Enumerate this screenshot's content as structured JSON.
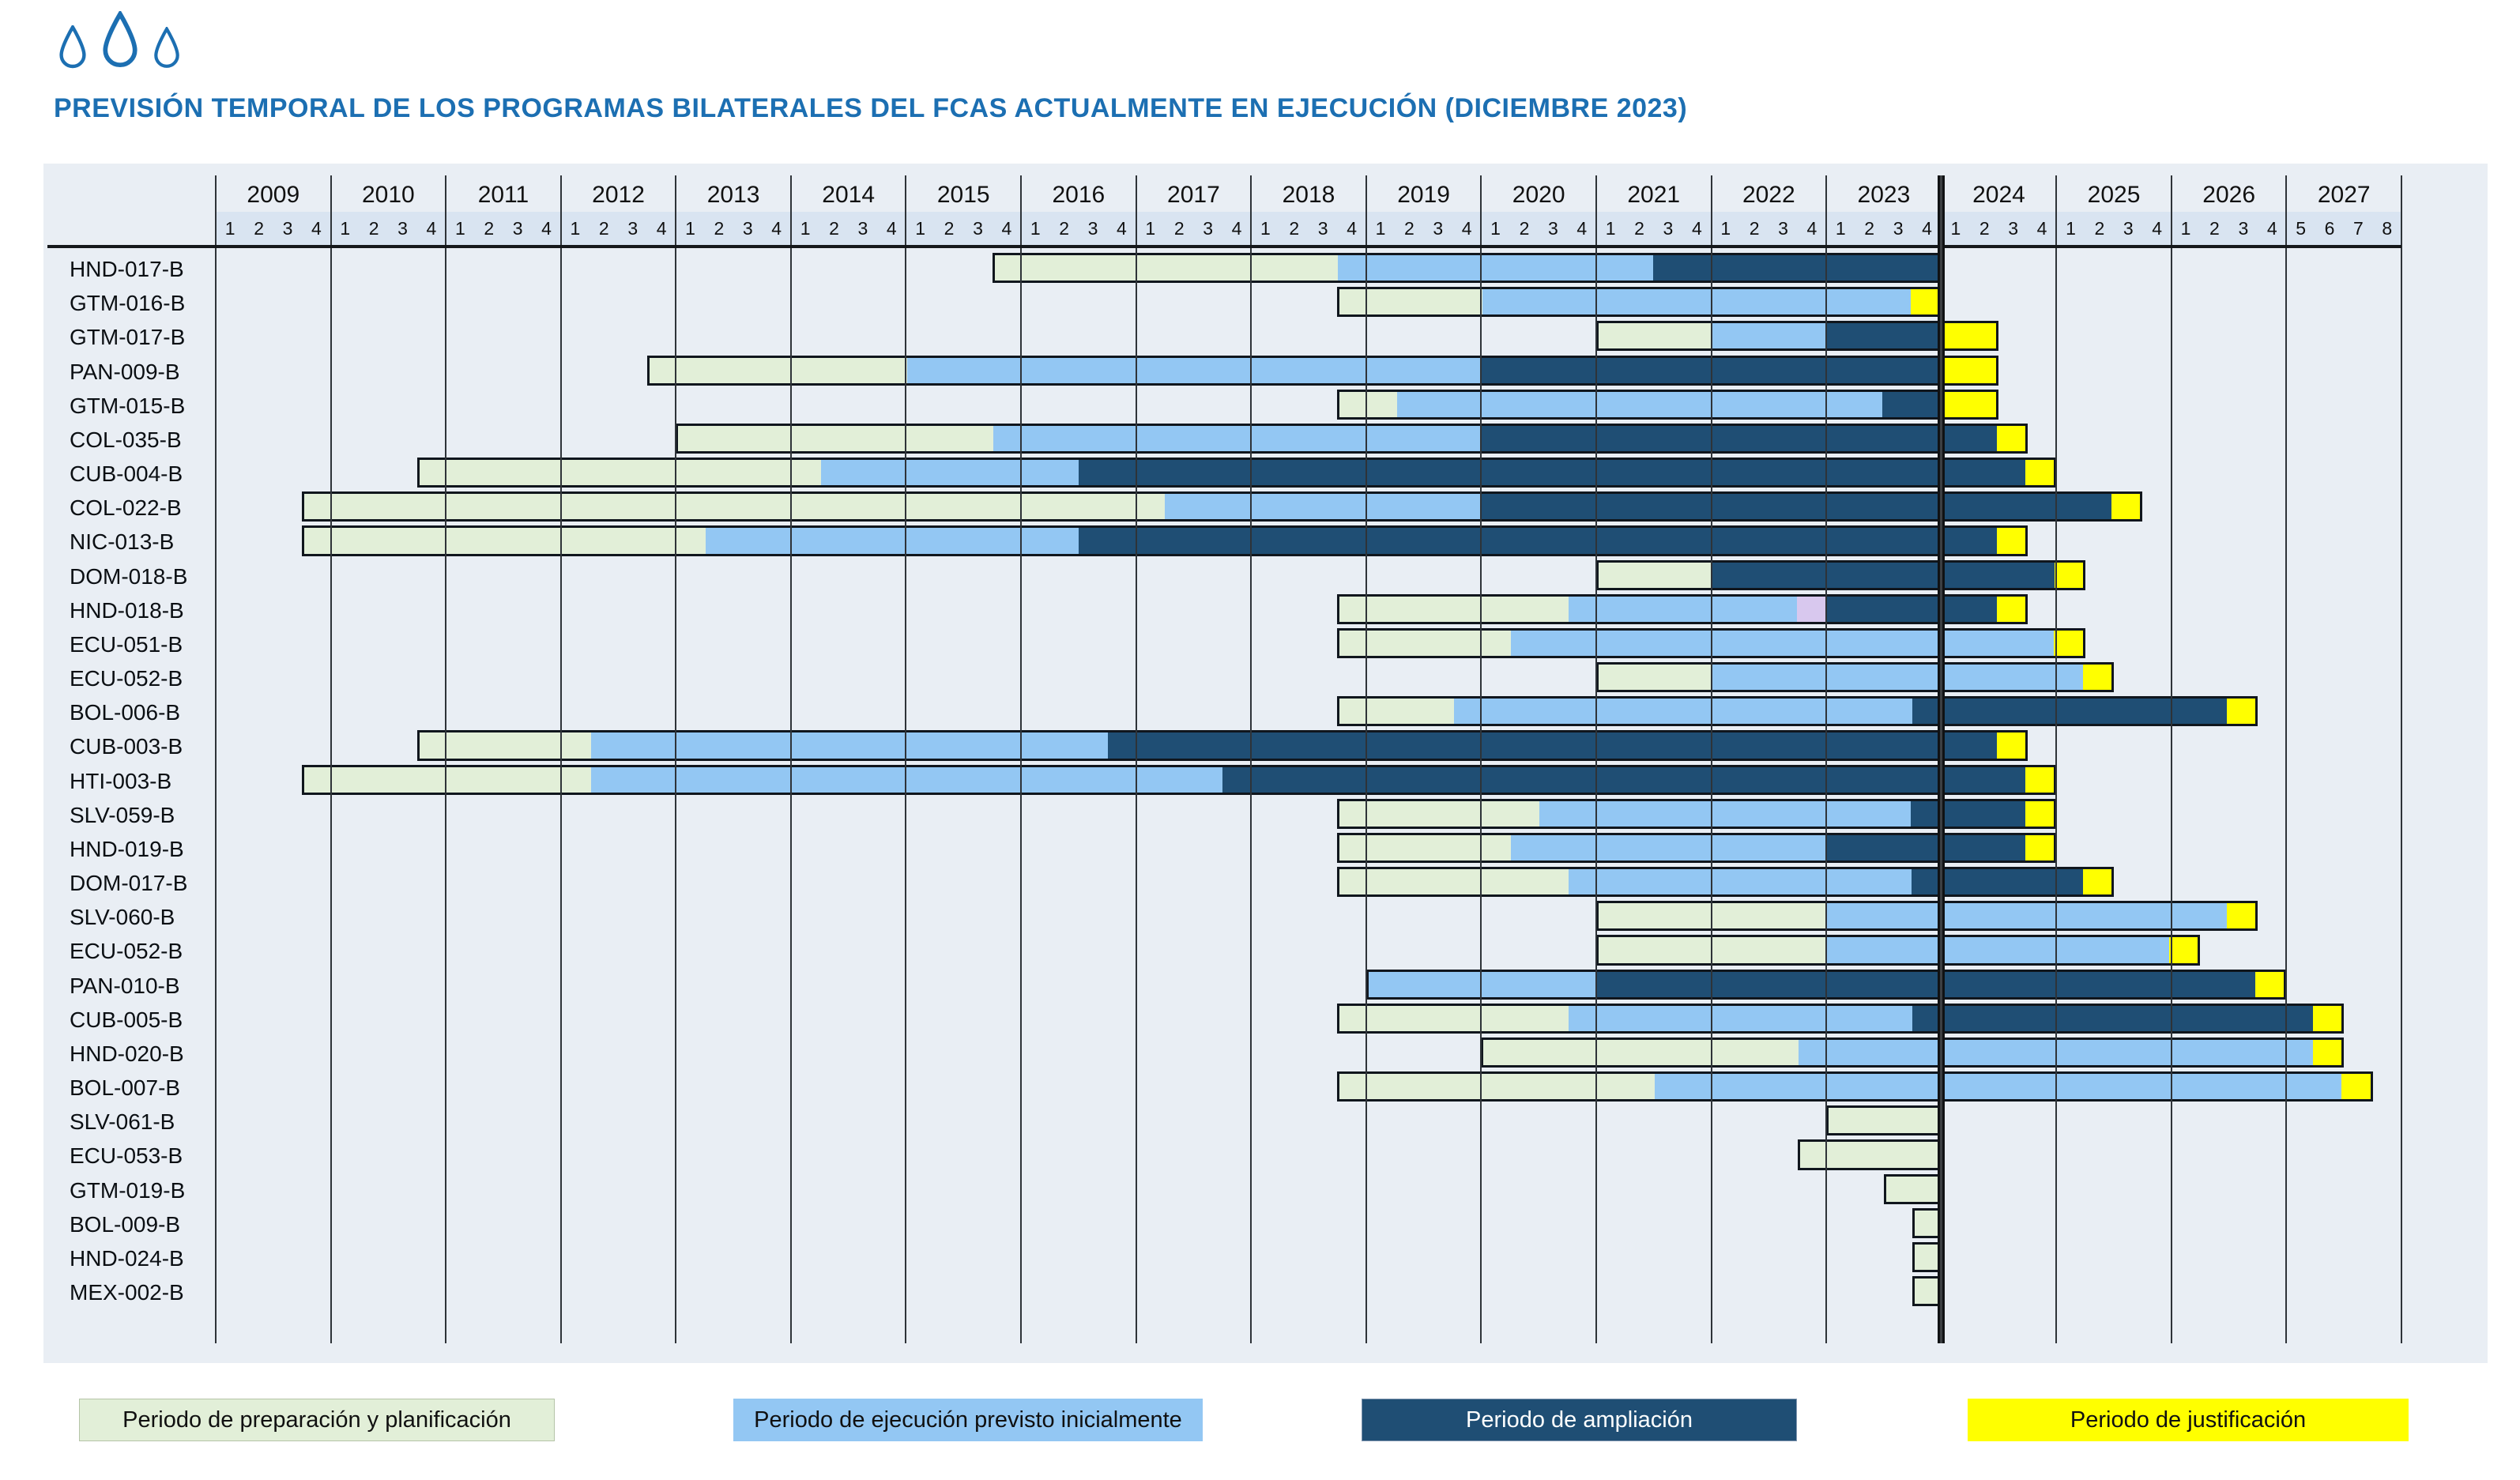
{
  "title": "PREVISIÓN TEMPORAL DE LOS PROGRAMAS BILATERALES DEL FCAS ACTUALMENTE EN EJECUCIÓN (DICIEMBRE 2023)",
  "brand": {
    "logo": "three-water-drops-icon",
    "accent_blue": "#1c6fb2"
  },
  "colors": {
    "panel_bg": "#e9eef4",
    "quarter_band_bg": "#d9e4f1",
    "grid_line": "#2e3338",
    "bar_border": "#10161d",
    "preparacion": "#e2efd8",
    "ejecucion": "#93c7f3",
    "ampliacion": "#1f4e74",
    "justificacion": "#ffff00",
    "suspension": "#d8c8ee"
  },
  "legend": [
    {
      "label": "Periodo de preparación y planificación",
      "color": "#e2efd8",
      "text": "#101010",
      "border": "#b5c4a8"
    },
    {
      "label": "Periodo de ejecución previsto inicialmente",
      "color": "#93c7f3",
      "text": "#101010",
      "border": "#93c7f3"
    },
    {
      "label": "Periodo de ampliación",
      "color": "#1f4e74",
      "text": "#ffffff",
      "border": "#7d93ad"
    },
    {
      "label": "Periodo de justificación",
      "color": "#ffff00",
      "text": "#101010",
      "border": "#ffff00"
    }
  ],
  "chart_data": {
    "type": "gantt",
    "title": "PREVISIÓN TEMPORAL DE LOS PROGRAMAS BILATERALES DEL FCAS ACTUALMENTE EN EJECUCIÓN (DICIEMBRE 2023)",
    "time_axis": {
      "quarter_index_base": "2009-Q1",
      "years": [
        {
          "year": "2009",
          "quarters": [
            "1",
            "2",
            "3",
            "4"
          ]
        },
        {
          "year": "2010",
          "quarters": [
            "1",
            "2",
            "3",
            "4"
          ]
        },
        {
          "year": "2011",
          "quarters": [
            "1",
            "2",
            "3",
            "4"
          ]
        },
        {
          "year": "2012",
          "quarters": [
            "1",
            "2",
            "3",
            "4"
          ]
        },
        {
          "year": "2013",
          "quarters": [
            "1",
            "2",
            "3",
            "4"
          ]
        },
        {
          "year": "2014",
          "quarters": [
            "1",
            "2",
            "3",
            "4"
          ]
        },
        {
          "year": "2015",
          "quarters": [
            "1",
            "2",
            "3",
            "4"
          ]
        },
        {
          "year": "2016",
          "quarters": [
            "1",
            "2",
            "3",
            "4"
          ]
        },
        {
          "year": "2017",
          "quarters": [
            "1",
            "2",
            "3",
            "4"
          ]
        },
        {
          "year": "2018",
          "quarters": [
            "1",
            "2",
            "3",
            "4"
          ]
        },
        {
          "year": "2019",
          "quarters": [
            "1",
            "2",
            "3",
            "4"
          ]
        },
        {
          "year": "2020",
          "quarters": [
            "1",
            "2",
            "3",
            "4"
          ]
        },
        {
          "year": "2021",
          "quarters": [
            "1",
            "2",
            "3",
            "4"
          ]
        },
        {
          "year": "2022",
          "quarters": [
            "1",
            "2",
            "3",
            "4"
          ]
        },
        {
          "year": "2023",
          "quarters": [
            "1",
            "2",
            "3",
            "4"
          ]
        },
        {
          "year": "2024",
          "quarters": [
            "1",
            "2",
            "3",
            "4"
          ]
        },
        {
          "year": "2025",
          "quarters": [
            "1",
            "2",
            "3",
            "4"
          ]
        },
        {
          "year": "2026",
          "quarters": [
            "1",
            "2",
            "3",
            "4"
          ]
        },
        {
          "year": "2027",
          "quarters": [
            "5",
            "6",
            "7",
            "8"
          ]
        }
      ],
      "today_marker_quarter": 60
    },
    "phases_legend": {
      "preparacion": "Periodo de preparación y planificación",
      "ejecucion": "Periodo de ejecución previsto inicialmente",
      "ampliacion": "Periodo de ampliación",
      "justificacion": "Periodo de justificación",
      "suspension": "(segmento morado sin rótulo en leyenda)"
    },
    "programs": [
      {
        "id": "HND-017-B",
        "segments": [
          {
            "phase": "preparacion",
            "from": 27,
            "to": 39
          },
          {
            "phase": "ejecucion",
            "from": 39,
            "to": 50
          },
          {
            "phase": "ampliacion",
            "from": 50,
            "to": 60
          }
        ]
      },
      {
        "id": "GTM-016-B",
        "segments": [
          {
            "phase": "preparacion",
            "from": 39,
            "to": 44
          },
          {
            "phase": "ejecucion",
            "from": 44,
            "to": 59
          },
          {
            "phase": "justificacion",
            "from": 59,
            "to": 60
          }
        ]
      },
      {
        "id": "GTM-017-B",
        "segments": [
          {
            "phase": "preparacion",
            "from": 48,
            "to": 52
          },
          {
            "phase": "ejecucion",
            "from": 52,
            "to": 56
          },
          {
            "phase": "ampliacion",
            "from": 56,
            "to": 60
          },
          {
            "phase": "justificacion",
            "from": 60,
            "to": 62
          }
        ]
      },
      {
        "id": "PAN-009-B",
        "segments": [
          {
            "phase": "preparacion",
            "from": 15,
            "to": 24
          },
          {
            "phase": "ejecucion",
            "from": 24,
            "to": 44
          },
          {
            "phase": "ampliacion",
            "from": 44,
            "to": 60
          },
          {
            "phase": "justificacion",
            "from": 60,
            "to": 62
          }
        ]
      },
      {
        "id": "GTM-015-B",
        "segments": [
          {
            "phase": "preparacion",
            "from": 39,
            "to": 41
          },
          {
            "phase": "ejecucion",
            "from": 41,
            "to": 58
          },
          {
            "phase": "ampliacion",
            "from": 58,
            "to": 60
          },
          {
            "phase": "justificacion",
            "from": 60,
            "to": 62
          }
        ]
      },
      {
        "id": "COL-035-B",
        "segments": [
          {
            "phase": "preparacion",
            "from": 16,
            "to": 27
          },
          {
            "phase": "ejecucion",
            "from": 27,
            "to": 44
          },
          {
            "phase": "ampliacion",
            "from": 44,
            "to": 62
          },
          {
            "phase": "justificacion",
            "from": 62,
            "to": 63
          }
        ]
      },
      {
        "id": "CUB-004-B",
        "segments": [
          {
            "phase": "preparacion",
            "from": 7,
            "to": 21
          },
          {
            "phase": "ejecucion",
            "from": 21,
            "to": 30
          },
          {
            "phase": "ampliacion",
            "from": 30,
            "to": 63
          },
          {
            "phase": "justificacion",
            "from": 63,
            "to": 64
          }
        ]
      },
      {
        "id": "COL-022-B",
        "segments": [
          {
            "phase": "preparacion",
            "from": 3,
            "to": 33
          },
          {
            "phase": "ejecucion",
            "from": 33,
            "to": 44
          },
          {
            "phase": "ampliacion",
            "from": 44,
            "to": 66
          },
          {
            "phase": "justificacion",
            "from": 66,
            "to": 67
          }
        ]
      },
      {
        "id": "NIC-013-B",
        "segments": [
          {
            "phase": "preparacion",
            "from": 3,
            "to": 17
          },
          {
            "phase": "ejecucion",
            "from": 17,
            "to": 30
          },
          {
            "phase": "ampliacion",
            "from": 30,
            "to": 62
          },
          {
            "phase": "justificacion",
            "from": 62,
            "to": 63
          }
        ]
      },
      {
        "id": "DOM-018-B",
        "segments": [
          {
            "phase": "preparacion",
            "from": 48,
            "to": 52
          },
          {
            "phase": "ampliacion",
            "from": 52,
            "to": 64
          },
          {
            "phase": "justificacion",
            "from": 64,
            "to": 65
          }
        ]
      },
      {
        "id": "HND-018-B",
        "segments": [
          {
            "phase": "preparacion",
            "from": 39,
            "to": 47
          },
          {
            "phase": "ejecucion",
            "from": 47,
            "to": 55
          },
          {
            "phase": "suspension",
            "from": 55,
            "to": 56
          },
          {
            "phase": "ampliacion",
            "from": 56,
            "to": 62
          },
          {
            "phase": "justificacion",
            "from": 62,
            "to": 63
          }
        ]
      },
      {
        "id": "ECU-051-B",
        "segments": [
          {
            "phase": "preparacion",
            "from": 39,
            "to": 45
          },
          {
            "phase": "ejecucion",
            "from": 45,
            "to": 64
          },
          {
            "phase": "justificacion",
            "from": 64,
            "to": 65
          }
        ]
      },
      {
        "id": "ECU-052-B",
        "segments": [
          {
            "phase": "preparacion",
            "from": 48,
            "to": 52
          },
          {
            "phase": "ejecucion",
            "from": 52,
            "to": 65
          },
          {
            "phase": "justificacion",
            "from": 65,
            "to": 66
          }
        ]
      },
      {
        "id": "BOL-006-B",
        "segments": [
          {
            "phase": "preparacion",
            "from": 39,
            "to": 43
          },
          {
            "phase": "ejecucion",
            "from": 43,
            "to": 59
          },
          {
            "phase": "ampliacion",
            "from": 59,
            "to": 70
          },
          {
            "phase": "justificacion",
            "from": 70,
            "to": 71
          }
        ]
      },
      {
        "id": "CUB-003-B",
        "segments": [
          {
            "phase": "preparacion",
            "from": 7,
            "to": 13
          },
          {
            "phase": "ejecucion",
            "from": 13,
            "to": 31
          },
          {
            "phase": "ampliacion",
            "from": 31,
            "to": 62
          },
          {
            "phase": "justificacion",
            "from": 62,
            "to": 63
          }
        ]
      },
      {
        "id": "HTI-003-B",
        "segments": [
          {
            "phase": "preparacion",
            "from": 3,
            "to": 13
          },
          {
            "phase": "ejecucion",
            "from": 13,
            "to": 35
          },
          {
            "phase": "ampliacion",
            "from": 35,
            "to": 63
          },
          {
            "phase": "justificacion",
            "from": 63,
            "to": 64
          }
        ]
      },
      {
        "id": "SLV-059-B",
        "segments": [
          {
            "phase": "preparacion",
            "from": 39,
            "to": 46
          },
          {
            "phase": "ejecucion",
            "from": 46,
            "to": 59
          },
          {
            "phase": "ampliacion",
            "from": 59,
            "to": 63
          },
          {
            "phase": "justificacion",
            "from": 63,
            "to": 64
          }
        ]
      },
      {
        "id": "HND-019-B",
        "segments": [
          {
            "phase": "preparacion",
            "from": 39,
            "to": 45
          },
          {
            "phase": "ejecucion",
            "from": 45,
            "to": 56
          },
          {
            "phase": "ampliacion",
            "from": 56,
            "to": 63
          },
          {
            "phase": "justificacion",
            "from": 63,
            "to": 64
          }
        ]
      },
      {
        "id": "DOM-017-B",
        "segments": [
          {
            "phase": "preparacion",
            "from": 39,
            "to": 47
          },
          {
            "phase": "ejecucion",
            "from": 47,
            "to": 59
          },
          {
            "phase": "ampliacion",
            "from": 59,
            "to": 65
          },
          {
            "phase": "justificacion",
            "from": 65,
            "to": 66
          }
        ]
      },
      {
        "id": "SLV-060-B",
        "segments": [
          {
            "phase": "preparacion",
            "from": 48,
            "to": 56
          },
          {
            "phase": "ejecucion",
            "from": 56,
            "to": 70
          },
          {
            "phase": "justificacion",
            "from": 70,
            "to": 71
          }
        ]
      },
      {
        "id": "ECU-052-B",
        "segments": [
          {
            "phase": "preparacion",
            "from": 48,
            "to": 56
          },
          {
            "phase": "ejecucion",
            "from": 56,
            "to": 68
          },
          {
            "phase": "justificacion",
            "from": 68,
            "to": 69
          }
        ]
      },
      {
        "id": "PAN-010-B",
        "segments": [
          {
            "phase": "ejecucion",
            "from": 40,
            "to": 48
          },
          {
            "phase": "ampliacion",
            "from": 48,
            "to": 71
          },
          {
            "phase": "justificacion",
            "from": 71,
            "to": 72
          }
        ]
      },
      {
        "id": "CUB-005-B",
        "segments": [
          {
            "phase": "preparacion",
            "from": 39,
            "to": 47
          },
          {
            "phase": "ejecucion",
            "from": 47,
            "to": 59
          },
          {
            "phase": "ampliacion",
            "from": 59,
            "to": 73
          },
          {
            "phase": "justificacion",
            "from": 73,
            "to": 74
          }
        ]
      },
      {
        "id": "HND-020-B",
        "segments": [
          {
            "phase": "preparacion",
            "from": 44,
            "to": 55
          },
          {
            "phase": "ejecucion",
            "from": 55,
            "to": 73
          },
          {
            "phase": "justificacion",
            "from": 73,
            "to": 74
          }
        ]
      },
      {
        "id": "BOL-007-B",
        "segments": [
          {
            "phase": "preparacion",
            "from": 39,
            "to": 50
          },
          {
            "phase": "ejecucion",
            "from": 50,
            "to": 74
          },
          {
            "phase": "justificacion",
            "from": 74,
            "to": 75
          }
        ]
      },
      {
        "id": "SLV-061-B",
        "segments": [
          {
            "phase": "preparacion",
            "from": 56,
            "to": 60
          }
        ]
      },
      {
        "id": "ECU-053-B",
        "segments": [
          {
            "phase": "preparacion",
            "from": 55,
            "to": 60
          }
        ]
      },
      {
        "id": "GTM-019-B",
        "segments": [
          {
            "phase": "preparacion",
            "from": 58,
            "to": 60
          }
        ]
      },
      {
        "id": "BOL-009-B",
        "segments": [
          {
            "phase": "preparacion",
            "from": 59,
            "to": 60
          }
        ]
      },
      {
        "id": "HND-024-B",
        "segments": [
          {
            "phase": "preparacion",
            "from": 59,
            "to": 60
          }
        ]
      },
      {
        "id": "MEX-002-B",
        "segments": [
          {
            "phase": "preparacion",
            "from": 59,
            "to": 60
          }
        ]
      }
    ]
  }
}
